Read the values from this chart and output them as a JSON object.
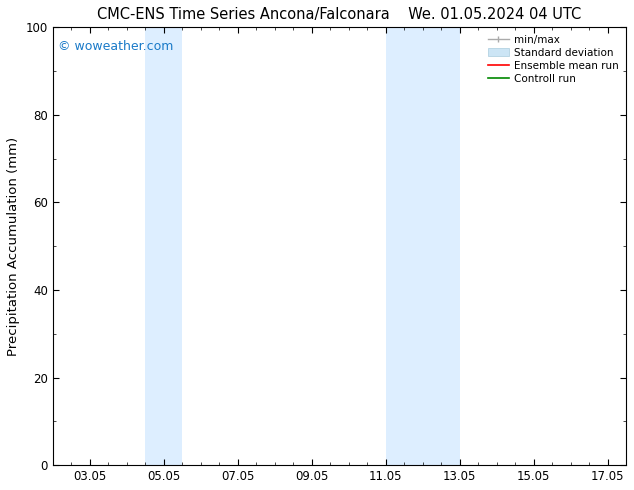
{
  "title_left": "CMC-ENS Time Series Ancona/Falconara",
  "title_right": "We. 01.05.2024 04 UTC",
  "ylabel": "Precipitation Accumulation (mm)",
  "watermark": "© woweather.com",
  "watermark_color": "#1a7ac8",
  "ylim": [
    0,
    100
  ],
  "yticks": [
    0,
    20,
    40,
    60,
    80,
    100
  ],
  "xlim": [
    2.05,
    17.55
  ],
  "xtick_positions": [
    3.05,
    5.05,
    7.05,
    9.05,
    11.05,
    13.05,
    15.05,
    17.05
  ],
  "xtick_labels": [
    "03.05",
    "05.05",
    "07.05",
    "09.05",
    "11.05",
    "13.05",
    "15.05",
    "17.05"
  ],
  "shaded_regions": [
    {
      "x_start": 4.55,
      "x_end": 5.55,
      "color": "#ddeeff"
    },
    {
      "x_start": 11.05,
      "x_end": 13.05,
      "color": "#ddeeff"
    }
  ],
  "background_color": "#ffffff",
  "plot_bg_color": "#ffffff",
  "tick_label_fontsize": 8.5,
  "axis_label_fontsize": 9.5,
  "title_fontsize": 10.5
}
